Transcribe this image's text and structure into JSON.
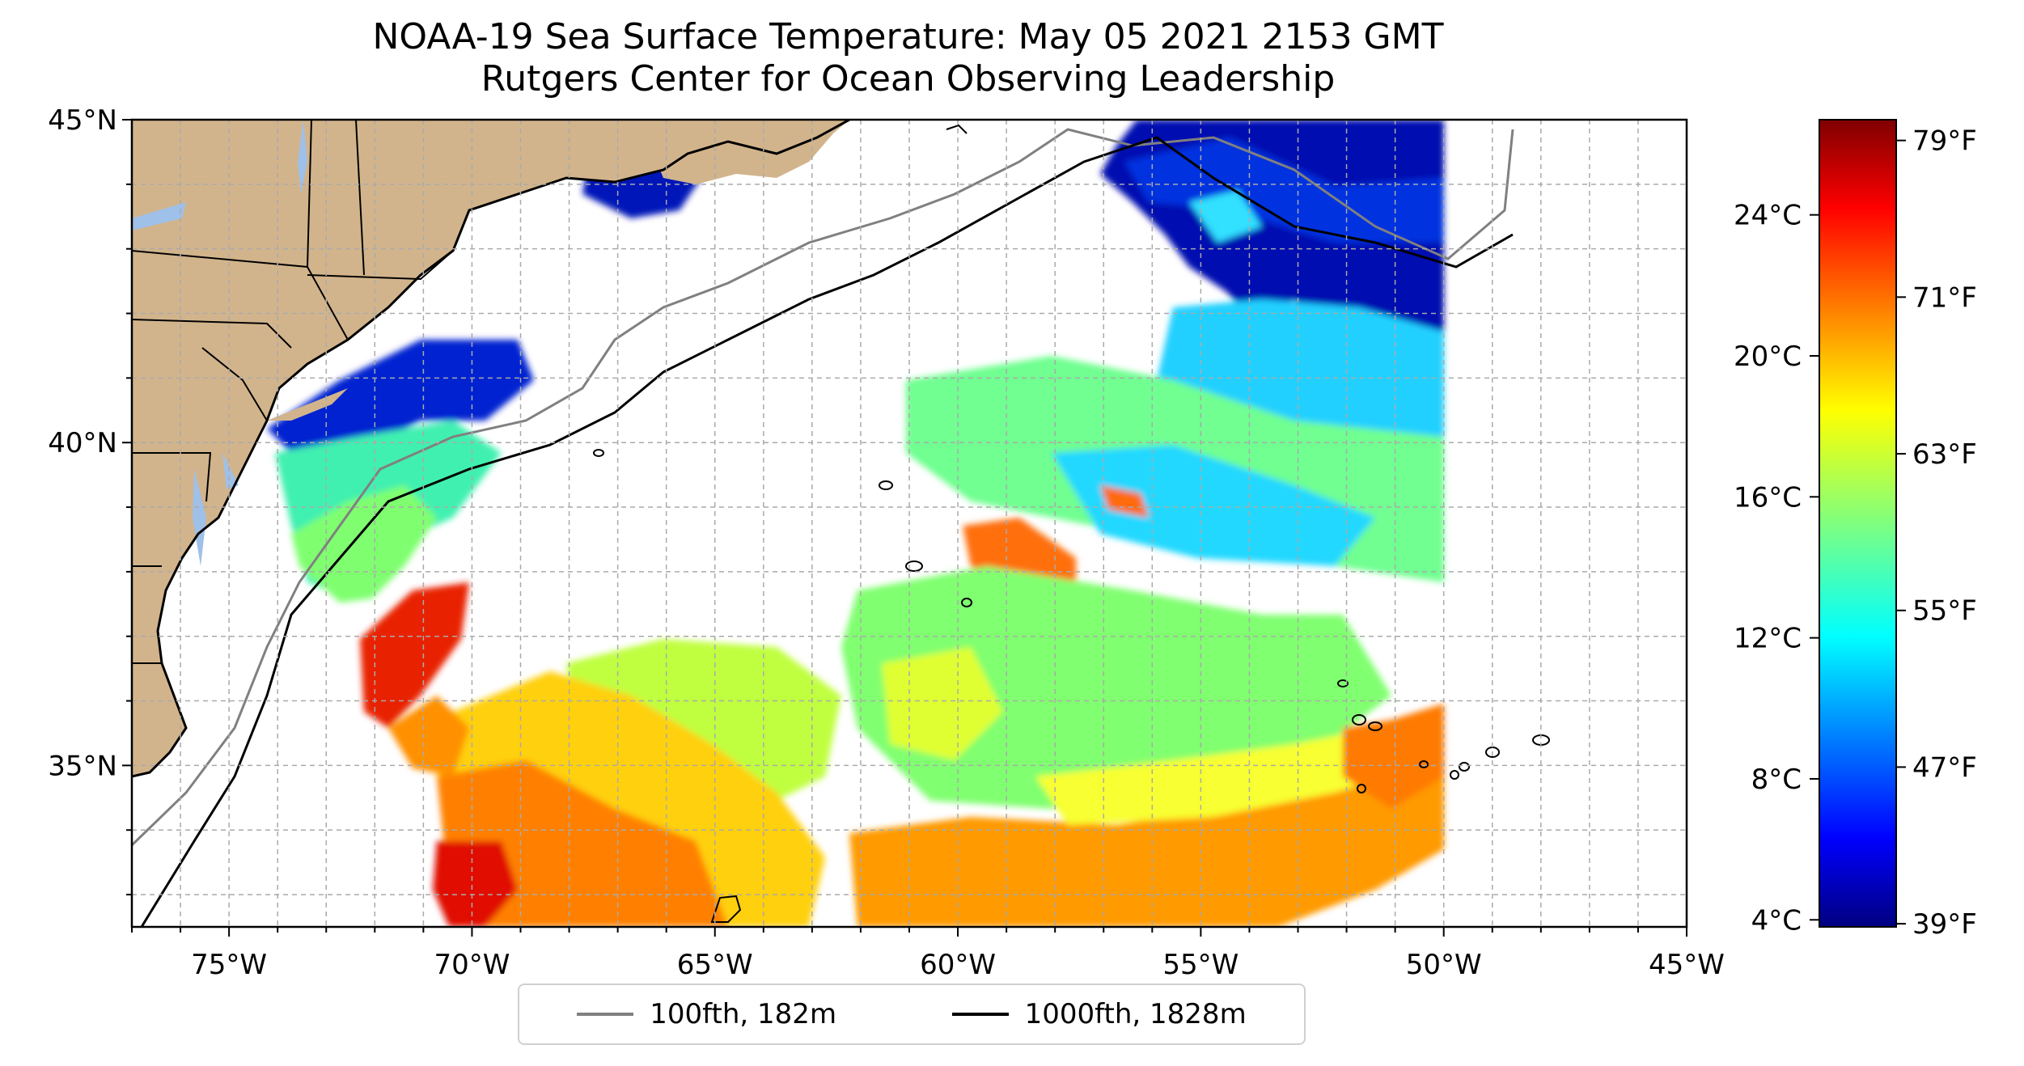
{
  "title": "NOAA-19 Sea Surface Temperature: May 05 2021 2153 GMT",
  "subtitle": "Rutgers Center for Ocean Observing Leadership",
  "map": {
    "lon_range": [
      -77,
      -45
    ],
    "lat_range": [
      32.5,
      45
    ],
    "x_ticks": [
      {
        "lon": -75,
        "label": "75°W"
      },
      {
        "lon": -70,
        "label": "70°W"
      },
      {
        "lon": -65,
        "label": "65°W"
      },
      {
        "lon": -60,
        "label": "60°W"
      },
      {
        "lon": -55,
        "label": "55°W"
      },
      {
        "lon": -50,
        "label": "50°W"
      },
      {
        "lon": -45,
        "label": "45°W"
      }
    ],
    "y_ticks": [
      {
        "lat": 45,
        "label": "45°N"
      },
      {
        "lat": 40,
        "label": "40°N"
      },
      {
        "lat": 35,
        "label": "35°N"
      }
    ],
    "grid": true,
    "land_color": "#d2b48c",
    "water_body_color": "#9fc0e8"
  },
  "colorbar": {
    "colormap": "jet",
    "celsius_range": [
      3.8,
      26.7
    ],
    "celsius_labels": [
      "24°C",
      "20°C",
      "16°C",
      "12°C",
      "8°C",
      "4°C"
    ],
    "celsius_values": [
      24,
      20,
      16,
      12,
      8,
      4
    ],
    "fahrenheit_labels": [
      "79°F",
      "71°F",
      "63°F",
      "55°F",
      "47°F",
      "39°F"
    ],
    "fahrenheit_values": [
      79,
      71,
      63,
      55,
      47,
      39
    ]
  },
  "legend": {
    "placement": "bottom-center",
    "entries": [
      {
        "label": "100fth, 182m",
        "color": "#808080"
      },
      {
        "label": "1000fth, 1828m",
        "color": "#000000"
      }
    ]
  }
}
